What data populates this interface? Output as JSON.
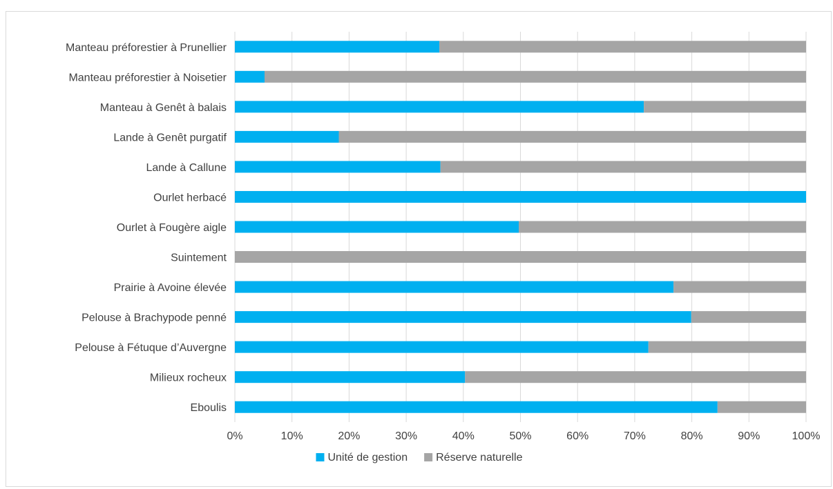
{
  "chart_data": {
    "type": "bar",
    "orientation": "horizontal",
    "stacked": "percent",
    "title": "",
    "xlabel": "",
    "ylabel": "",
    "xlim": [
      0,
      100
    ],
    "x_ticks": [
      "0%",
      "10%",
      "20%",
      "30%",
      "40%",
      "50%",
      "60%",
      "70%",
      "80%",
      "90%",
      "100%"
    ],
    "grid": true,
    "legend_position": "bottom",
    "categories": [
      "Manteau préforestier à Prunellier",
      "Manteau préforestier à Noisetier",
      "Manteau à Genêt à balais",
      "Lande à Genêt purgatif",
      "Lande à Callune",
      "Ourlet herbacé",
      "Ourlet à Fougère aigle ",
      "Suintement",
      "Prairie à Avoine élevée ",
      "Pelouse à Brachypode penné ",
      "Pelouse à Fétuque d’Auvergne",
      "Milieux rocheux",
      "Eboulis"
    ],
    "series": [
      {
        "name": "Unité de gestion",
        "color": "#00b0f0",
        "values": [
          35.8,
          5.2,
          71.6,
          18.2,
          36.0,
          100,
          49.7,
          0,
          76.8,
          79.9,
          72.4,
          40.3,
          84.5
        ]
      },
      {
        "name": "Réserve naturelle",
        "color": "#a5a5a5",
        "values": [
          64.2,
          94.8,
          28.4,
          81.8,
          64.0,
          0,
          50.3,
          100,
          23.2,
          20.1,
          27.6,
          59.7,
          15.5
        ]
      }
    ]
  }
}
